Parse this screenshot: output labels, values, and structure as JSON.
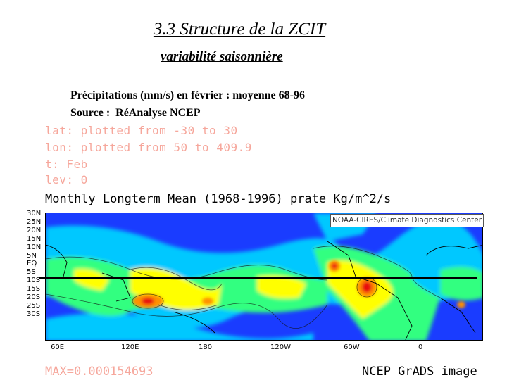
{
  "slide": {
    "title": "3.3 Structure de la ZCIT",
    "subtitle": "variabilité saisonnière",
    "info_line1": "Précipitations (mm/s) en février : moyenne 68-96",
    "info_line2": "Source :  RéAnalyse NCEP"
  },
  "grads": {
    "meta_lat": "lat: plotted from -30 to 30",
    "meta_lon": "lon: plotted from 50 to 409.9",
    "meta_t": "t: Feb",
    "meta_lev": "lev: 0",
    "plot_title": "Monthly Longterm Mean (1968-1996) prate Kg/m^2/s",
    "noaa_credit": "NOAA-CIRES/Climate Diagnostics Center",
    "lat_ticks": [
      "30N",
      "25N",
      "20N",
      "15N",
      "10N",
      "5N",
      "EQ",
      "5S",
      "10S",
      "15S",
      "20S",
      "25S",
      "30S"
    ],
    "lon_ticks": [
      "60E",
      "120E",
      "180",
      "120W",
      "60W",
      "0"
    ],
    "max_text": "MAX=0.000154693",
    "image_credit": "NCEP GrADS image"
  },
  "colors": {
    "low": "#1a3cff",
    "mid_low": "#00c8ff",
    "mid": "#30ff80",
    "mid_high": "#ffff00",
    "high": "#ff9000",
    "max": "#e81010",
    "meta_text": "#f6a79c"
  }
}
